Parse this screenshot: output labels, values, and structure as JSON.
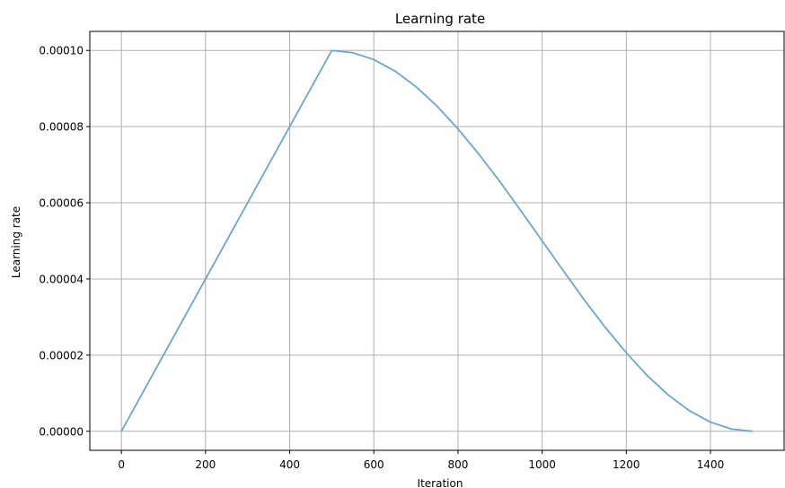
{
  "chart_data": {
    "type": "line",
    "title": "Learning rate",
    "xlabel": "Iteration",
    "ylabel": "Learning rate",
    "xlim": [
      -75,
      1575
    ],
    "ylim": [
      -5e-06,
      0.000105
    ],
    "x_ticks": [
      0,
      200,
      400,
      600,
      800,
      1000,
      1200,
      1400
    ],
    "x_tick_labels": [
      "0",
      "200",
      "400",
      "600",
      "800",
      "1000",
      "1200",
      "1400"
    ],
    "y_ticks": [
      0,
      2e-05,
      4e-05,
      6e-05,
      8e-05,
      0.0001
    ],
    "y_tick_labels": [
      "0.00000",
      "0.00002",
      "0.00004",
      "0.00006",
      "0.00008",
      "0.00010"
    ],
    "grid": true,
    "line_color": "#6aa6cf",
    "series": [
      {
        "x": [
          0,
          500,
          550,
          600,
          650,
          700,
          750,
          800,
          850,
          900,
          950,
          1000,
          1050,
          1100,
          1150,
          1200,
          1250,
          1300,
          1350,
          1400,
          1450,
          1500
        ],
        "values": [
          0,
          0.0001,
          9.94e-05,
          9.76e-05,
          9.46e-05,
          9.05e-05,
          8.54e-05,
          7.94e-05,
          7.27e-05,
          6.55e-05,
          5.78e-05,
          5e-05,
          4.22e-05,
          3.45e-05,
          2.73e-05,
          2.06e-05,
          1.46e-05,
          9.5e-06,
          5.4e-06,
          2.4e-06,
          6e-07,
          0
        ]
      }
    ]
  }
}
